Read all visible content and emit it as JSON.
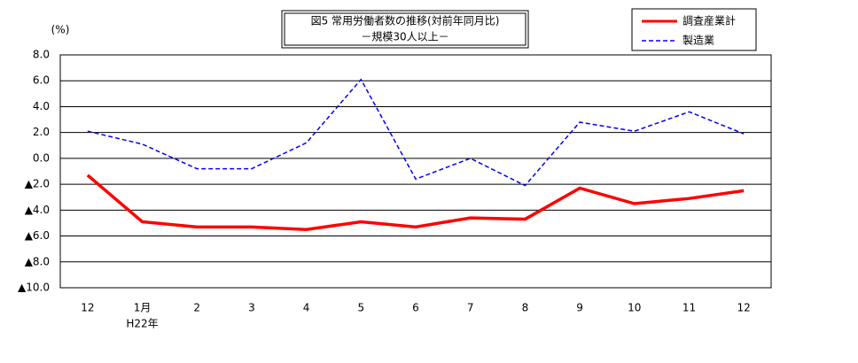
{
  "chart_data": {
    "type": "line",
    "title": "図5 常用労働者数の推移(対前年同月比)",
    "subtitle": "－規模30人以上－",
    "y_unit": "(%)",
    "x_year_label": "H22年",
    "categories": [
      "12",
      "1月",
      "2",
      "3",
      "4",
      "5",
      "6",
      "7",
      "8",
      "9",
      "10",
      "11",
      "12"
    ],
    "series": [
      {
        "name": "調査産業計",
        "color": "#ff0000",
        "dash": false,
        "values": [
          -1.3,
          -4.9,
          -5.3,
          -5.3,
          -5.5,
          -4.9,
          -5.3,
          -4.6,
          -4.7,
          -2.3,
          -3.5,
          -3.1,
          -2.5
        ]
      },
      {
        "name": "製造業",
        "color": "#0000ff",
        "dash": true,
        "values": [
          2.1,
          1.1,
          -0.8,
          -0.8,
          1.2,
          6.1,
          -1.6,
          0.0,
          -2.1,
          2.8,
          2.1,
          3.6,
          1.9
        ]
      }
    ],
    "ylim": [
      -10,
      8
    ],
    "yticks": [
      {
        "value": 8,
        "label": "8.0"
      },
      {
        "value": 6,
        "label": "6.0"
      },
      {
        "value": 4,
        "label": "4.0"
      },
      {
        "value": 2,
        "label": "2.0"
      },
      {
        "value": 0,
        "label": "0.0"
      },
      {
        "value": -2,
        "label": "▲2.0"
      },
      {
        "value": -4,
        "label": "▲4.0"
      },
      {
        "value": -6,
        "label": "▲6.0"
      },
      {
        "value": -8,
        "label": "▲8.0"
      },
      {
        "value": -10,
        "label": "▲10.0"
      }
    ],
    "grid": true
  }
}
